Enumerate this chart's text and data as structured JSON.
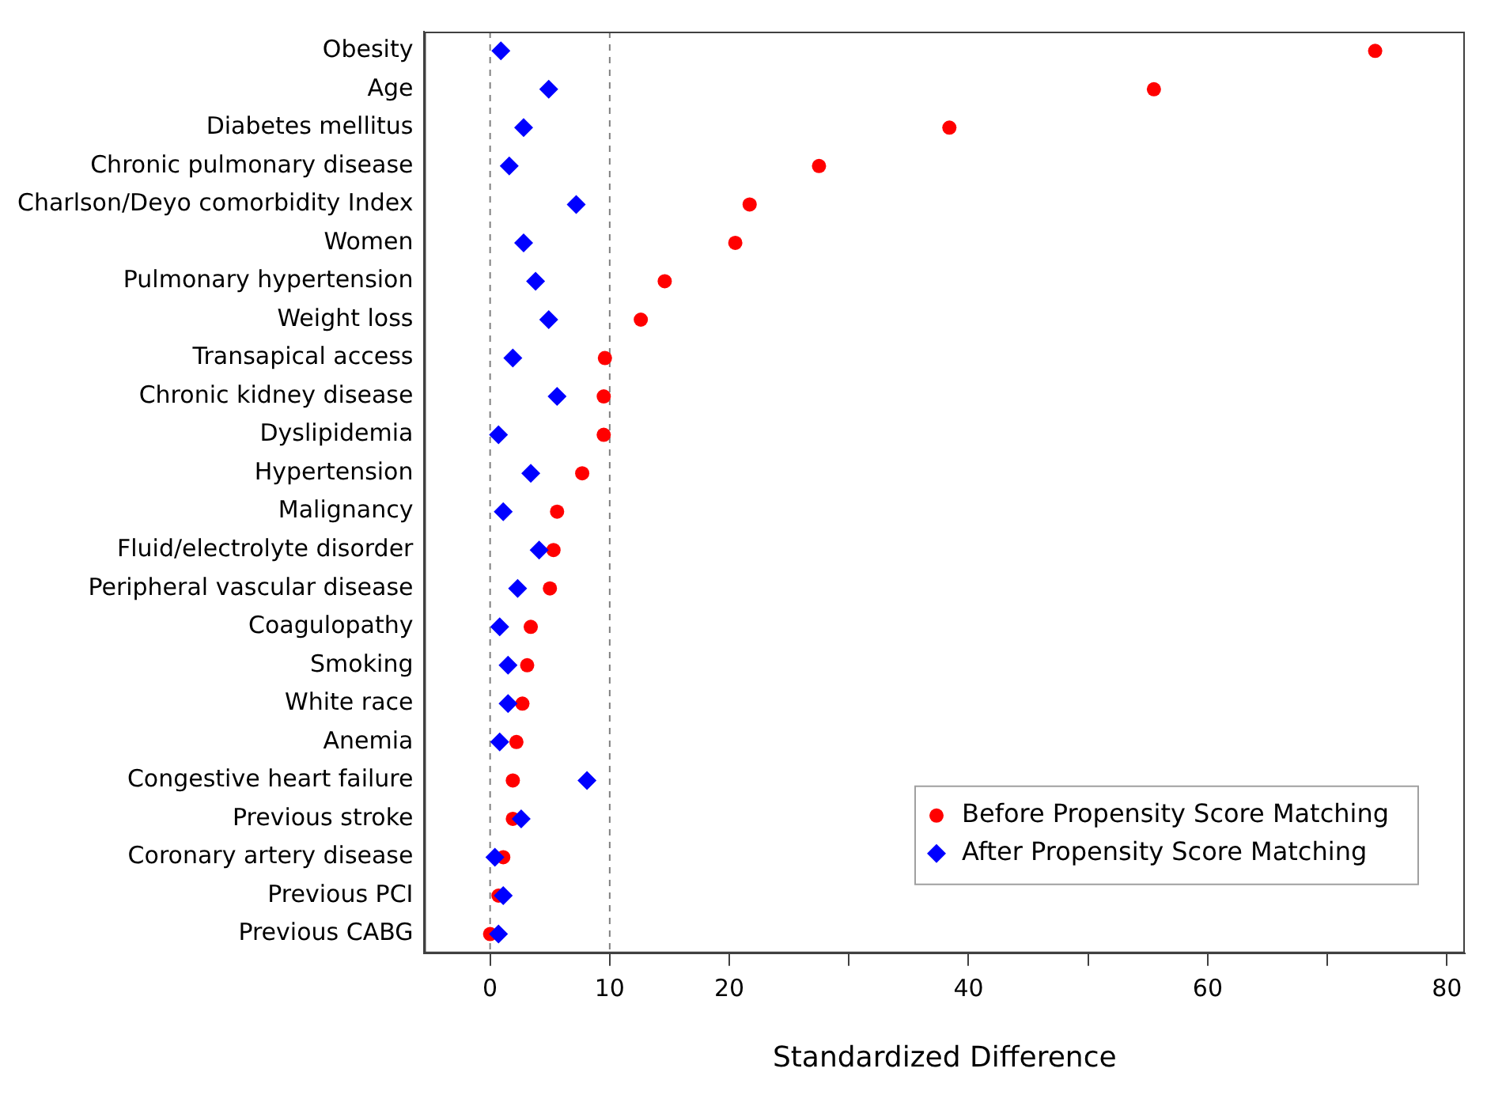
{
  "chart_data": {
    "type": "scatter",
    "orientation": "horizontal",
    "xlabel": "Standardized Difference",
    "categories": [
      "Obesity",
      "Age",
      "Diabetes mellitus",
      "Chronic pulmonary disease",
      "Charlson/Deyo comorbidity Index",
      "Women",
      "Pulmonary hypertension",
      "Weight loss",
      "Transapical access",
      "Chronic kidney disease",
      "Dyslipidemia",
      "Hypertension",
      "Malignancy",
      "Fluid/electrolyte disorder",
      "Peripheral vascular disease",
      "Coagulopathy",
      "Smoking",
      "White race",
      "Anemia",
      "Congestive heart failure",
      "Previous stroke",
      "Coronary artery disease",
      "Previous PCI",
      "Previous CABG"
    ],
    "series": [
      {
        "name": "Before Propensity Score Matching",
        "color": "#ff0000",
        "marker": "circle",
        "values": [
          74.0,
          55.5,
          38.4,
          27.5,
          21.7,
          20.5,
          14.6,
          12.6,
          9.6,
          9.5,
          9.5,
          7.7,
          5.6,
          5.3,
          5.0,
          3.4,
          3.1,
          2.7,
          2.2,
          1.9,
          1.9,
          1.1,
          0.7,
          0.0
        ]
      },
      {
        "name": "After Propensity Score Matching",
        "color": "#0000ff",
        "marker": "diamond",
        "values": [
          0.9,
          4.9,
          2.8,
          1.6,
          7.2,
          2.8,
          3.8,
          4.9,
          1.9,
          5.6,
          0.7,
          3.4,
          1.1,
          4.1,
          2.3,
          0.8,
          1.5,
          1.5,
          0.8,
          8.1,
          2.6,
          0.4,
          1.1,
          0.7
        ]
      }
    ],
    "xlim": [
      -5.5,
      81.5
    ],
    "xticks": [
      0,
      10,
      20,
      {
        "value": 30,
        "label": null
      },
      40,
      {
        "value": 50,
        "label": null
      },
      60,
      {
        "value": 70,
        "label": null
      },
      80
    ],
    "ref_lines": [
      {
        "axis": "x",
        "value": 0,
        "color": "#808080",
        "line_style": "dashed"
      },
      {
        "axis": "x",
        "value": 10,
        "color": "#808080",
        "line_style": "dashed"
      }
    ],
    "legend": "bottom right",
    "grid": false
  }
}
